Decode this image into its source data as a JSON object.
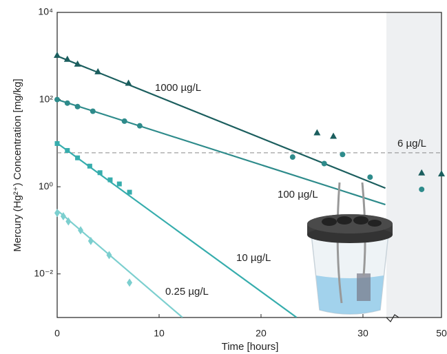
{
  "chart_data": {
    "type": "scatter",
    "x_label": "Time [hours]",
    "y_label": "Mercury (Hg²⁺) Concentration [mg/kg]",
    "xlim": [
      0,
      50
    ],
    "xticks": [
      0,
      10,
      20,
      30,
      50
    ],
    "x_break": [
      32.3,
      45
    ],
    "ylim": [
      0.001,
      10000
    ],
    "log_y": true,
    "yticks": [
      {
        "value": 10000,
        "label": "10⁴"
      },
      {
        "value": 100,
        "label": "10²"
      },
      {
        "value": 1,
        "label": "10⁰"
      },
      {
        "value": 0.01,
        "label": "10⁻²"
      }
    ],
    "threshold": {
      "value": 6,
      "label": "6 µg/L",
      "color": "#888888"
    },
    "series": [
      {
        "name": "1000 µg/L",
        "color": "#1b5e5e",
        "marker": "triangle",
        "x": [
          0,
          1,
          2,
          4,
          7,
          25.5,
          27.1,
          48.2,
          50
        ],
        "values": [
          1050,
          850,
          660,
          440,
          240,
          17.5,
          14.6,
          2.1,
          2.0
        ],
        "fit": {
          "x": [
            0,
            32.2
          ],
          "values": [
            1000,
            0.93
          ]
        }
      },
      {
        "name": "100 µg/L",
        "color": "#2e8b8b",
        "marker": "circle",
        "x": [
          0,
          1,
          2,
          3.5,
          6.6,
          8.1,
          23.1,
          26.2,
          28,
          30.7,
          48.2
        ],
        "values": [
          100,
          83,
          69,
          54,
          32,
          25,
          4.8,
          3.4,
          5.5,
          1.66,
          0.87
        ],
        "fit": {
          "x": [
            0,
            32.2
          ],
          "values": [
            100,
            0.39
          ]
        }
      },
      {
        "name": "10 µg/L",
        "color": "#36adad",
        "marker": "square",
        "x": [
          0,
          1,
          2,
          3.2,
          4.2,
          5.2,
          6.1,
          7.1
        ],
        "values": [
          9.8,
          6.8,
          4.6,
          2.97,
          2.1,
          1.44,
          1.16,
          0.75
        ],
        "fit": {
          "x": [
            0,
            23.5
          ],
          "values": [
            10,
            0.001
          ]
        }
      },
      {
        "name": "0.25 µg/L",
        "color": "#7ccfcf",
        "marker": "diamond",
        "x": [
          0,
          0.6,
          1.1,
          2.3,
          3.3,
          5.1,
          7.1
        ],
        "values": [
          0.25,
          0.21,
          0.16,
          0.1,
          0.057,
          0.027,
          0.0063
        ],
        "fit": {
          "x": [
            0,
            12.3
          ],
          "values": [
            0.29,
            0.001
          ]
        }
      }
    ]
  }
}
